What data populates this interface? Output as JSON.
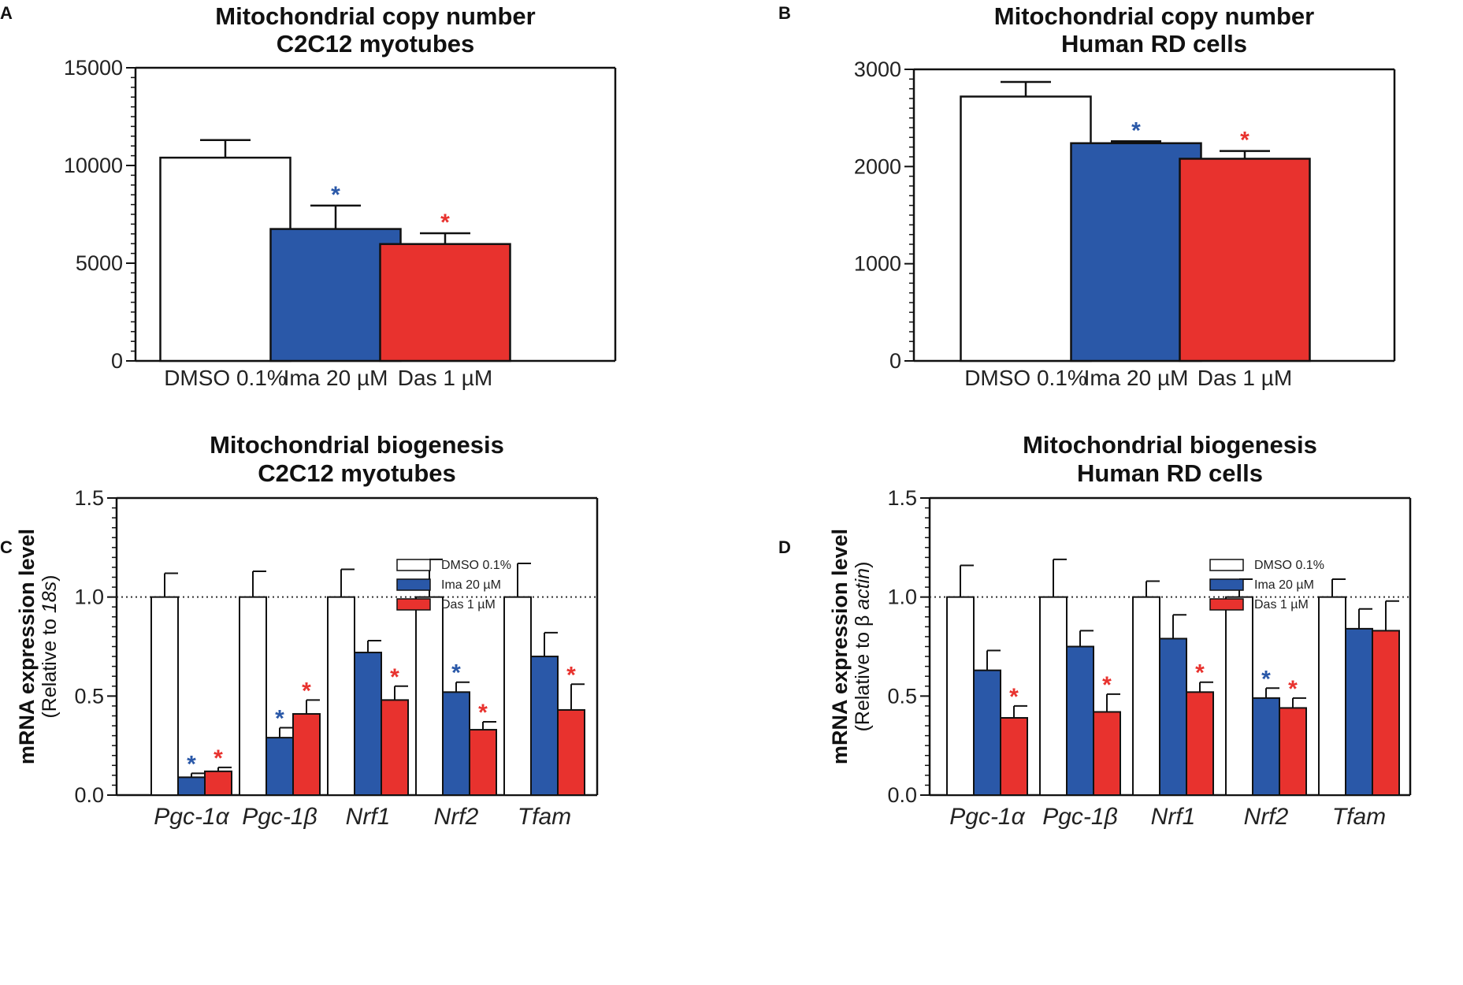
{
  "colors": {
    "dmso": "#ffffff",
    "ima": "#2a58a8",
    "das": "#e8322e",
    "axis": "#111111"
  },
  "chart_data": [
    {
      "panel": "A",
      "type": "bar",
      "title": [
        "Mitochondrial copy number",
        "C2C12 myotubes"
      ],
      "categories": [
        "DMSO 0.1%",
        "Ima 20 µM",
        "Das 1 µM"
      ],
      "values": [
        10400,
        6750,
        5980
      ],
      "errors": [
        900,
        1200,
        550
      ],
      "significant": [
        false,
        true,
        true
      ],
      "ylim": [
        0,
        15000
      ],
      "yticks": [
        0,
        5000,
        10000,
        15000
      ],
      "ytick_labels": [
        "0",
        "5000",
        "10000",
        "15000"
      ],
      "xlabel": "",
      "ylabel": ""
    },
    {
      "panel": "B",
      "type": "bar",
      "title": [
        "Mitochondrial copy number",
        "Human RD cells"
      ],
      "categories": [
        "DMSO 0.1%",
        "Ima 20 µM",
        "Das 1 µM"
      ],
      "values": [
        2720,
        2240,
        2080
      ],
      "errors": [
        150,
        20,
        80
      ],
      "significant": [
        false,
        true,
        true
      ],
      "ylim": [
        0,
        3000
      ],
      "yticks": [
        0,
        1000,
        2000,
        3000
      ],
      "ytick_labels": [
        "0",
        "1000",
        "2000",
        "3000"
      ],
      "xlabel": "",
      "ylabel": ""
    },
    {
      "panel": "C",
      "type": "bar",
      "title": [
        "Mitochondrial biogenesis",
        "C2C12 myotubes"
      ],
      "ylabel": "mRNA expression level",
      "ylabel_sub": "(Relative to ",
      "ylabel_sub_italic": "18s",
      "ylabel_sub_end": ")",
      "categories": [
        "Pgc-1α",
        "Pgc-1β",
        "Nrf1",
        "Nrf2",
        "Tfam"
      ],
      "series": [
        {
          "name": "DMSO 0.1%",
          "values": [
            1.0,
            1.0,
            1.0,
            1.0,
            1.0
          ],
          "errors": [
            0.12,
            0.13,
            0.14,
            0.19,
            0.17
          ],
          "significant": [
            false,
            false,
            false,
            false,
            false
          ]
        },
        {
          "name": "Ima 20 µM",
          "values": [
            0.09,
            0.29,
            0.72,
            0.52,
            0.7
          ],
          "errors": [
            0.02,
            0.05,
            0.06,
            0.05,
            0.12
          ],
          "significant": [
            true,
            true,
            false,
            true,
            false
          ]
        },
        {
          "name": "Das 1 µM",
          "values": [
            0.12,
            0.41,
            0.48,
            0.33,
            0.43
          ],
          "errors": [
            0.02,
            0.07,
            0.07,
            0.04,
            0.13
          ],
          "significant": [
            true,
            true,
            true,
            true,
            true
          ]
        }
      ],
      "reference_line": 1.0,
      "ylim": [
        0,
        1.5
      ],
      "yticks": [
        0,
        0.5,
        1.0,
        1.5
      ],
      "ytick_labels": [
        "0.0",
        "0.5",
        "1.0",
        "1.5"
      ],
      "legend": "top-right"
    },
    {
      "panel": "D",
      "type": "bar",
      "title": [
        "Mitochondrial biogenesis",
        "Human RD cells"
      ],
      "ylabel": "mRNA expression level",
      "ylabel_sub": "(Relative to β ",
      "ylabel_sub_italic": "actin",
      "ylabel_sub_end": ")",
      "categories": [
        "Pgc-1α",
        "Pgc-1β",
        "Nrf1",
        "Nrf2",
        "Tfam"
      ],
      "series": [
        {
          "name": "DMSO 0.1%",
          "values": [
            1.0,
            1.0,
            1.0,
            1.0,
            1.0
          ],
          "errors": [
            0.16,
            0.19,
            0.08,
            0.09,
            0.09
          ],
          "significant": [
            false,
            false,
            false,
            false,
            false
          ]
        },
        {
          "name": "Ima 20 µM",
          "values": [
            0.63,
            0.75,
            0.79,
            0.49,
            0.84
          ],
          "errors": [
            0.1,
            0.08,
            0.12,
            0.05,
            0.1
          ],
          "significant": [
            false,
            false,
            false,
            true,
            false
          ]
        },
        {
          "name": "Das 1 µM",
          "values": [
            0.39,
            0.42,
            0.52,
            0.44,
            0.83
          ],
          "errors": [
            0.06,
            0.09,
            0.05,
            0.05,
            0.15
          ],
          "significant": [
            true,
            true,
            true,
            true,
            false
          ]
        }
      ],
      "reference_line": 1.0,
      "ylim": [
        0,
        1.5
      ],
      "yticks": [
        0,
        0.5,
        1.0,
        1.5
      ],
      "ytick_labels": [
        "0.0",
        "0.5",
        "1.0",
        "1.5"
      ],
      "legend": "top-right"
    }
  ],
  "significance_marker": "*"
}
